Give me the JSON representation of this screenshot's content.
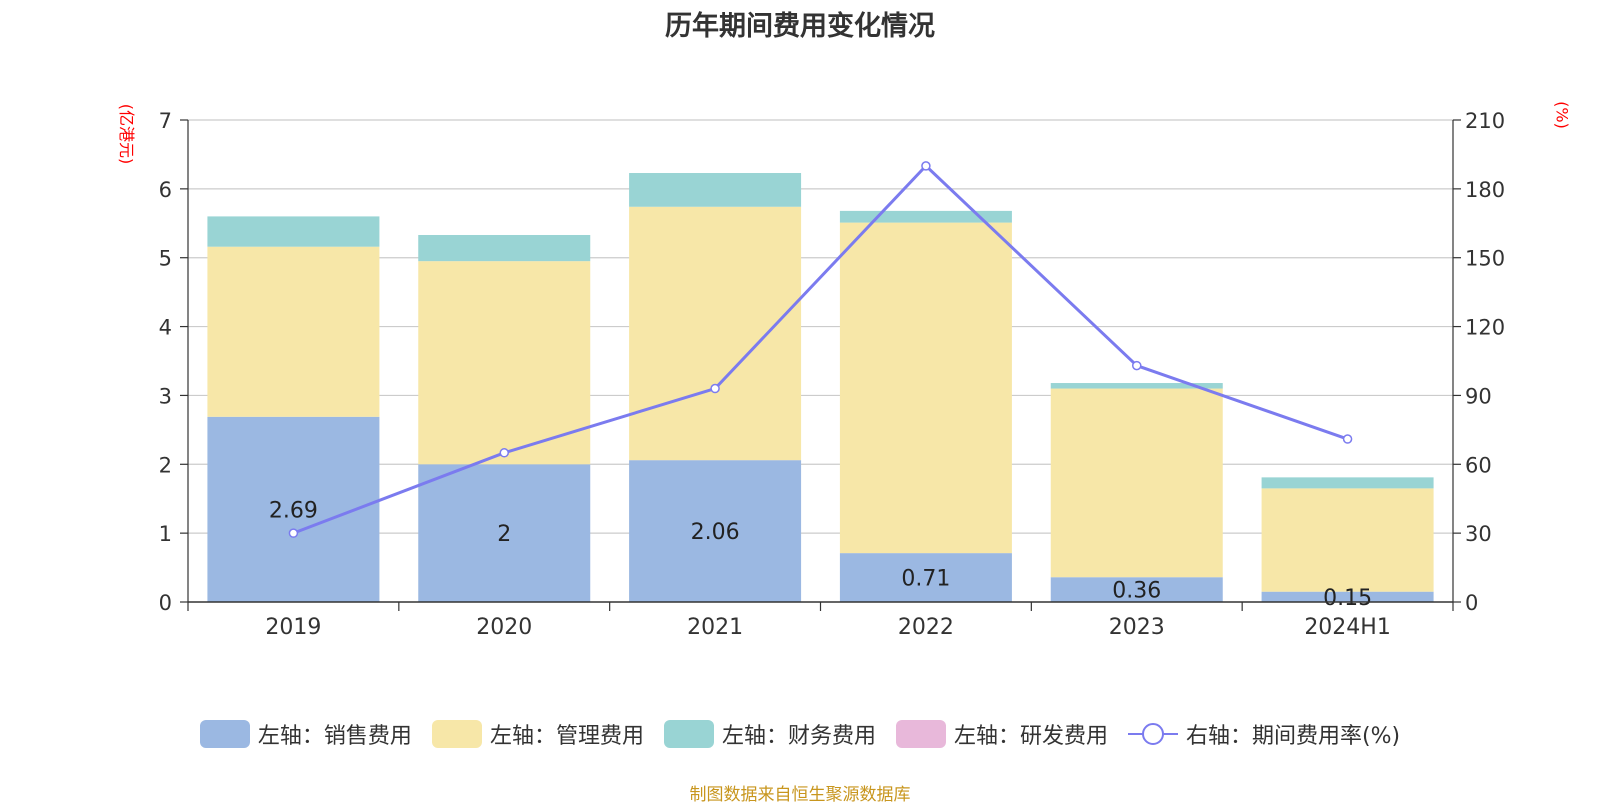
{
  "title": "历年期间费用变化情况",
  "unit_left": "(亿港元)",
  "unit_right": "(%)",
  "source": "制图数据来自恒生聚源数据库",
  "colors": {
    "sales": "#9bb8e2",
    "admin": "#f7e7a8",
    "finance": "#99d4d4",
    "rnd": "#e8b8da",
    "ratio": "#7b7bef"
  },
  "chart_data": {
    "type": "bar",
    "categories": [
      "2019",
      "2020",
      "2021",
      "2022",
      "2023",
      "2024H1"
    ],
    "ylim_left": [
      0,
      7
    ],
    "yticks_left": [
      "0",
      "1",
      "2",
      "3",
      "4",
      "5",
      "6",
      "7"
    ],
    "ylim_right": [
      0,
      210
    ],
    "yticks_right": [
      "0",
      "30",
      "60",
      "90",
      "120",
      "150",
      "180",
      "210"
    ],
    "grid": true,
    "legend_position": "bottom",
    "series": [
      {
        "name": "左轴：销售费用",
        "axis": "left",
        "stack": true,
        "values": [
          2.69,
          2,
          2.06,
          0.71,
          0.36,
          0.15
        ],
        "labels": [
          "2.69",
          "2",
          "2.06",
          "0.71",
          "0.36",
          "0.15"
        ]
      },
      {
        "name": "左轴：管理费用",
        "axis": "left",
        "stack": true,
        "values": [
          2.47,
          2.95,
          3.68,
          4.8,
          2.74,
          1.5
        ]
      },
      {
        "name": "左轴：财务费用",
        "axis": "left",
        "stack": true,
        "values": [
          0.44,
          0.38,
          0.49,
          0.17,
          0.08,
          0.16
        ]
      },
      {
        "name": "左轴：研发费用",
        "axis": "left",
        "stack": true,
        "values": [
          0,
          0,
          0,
          0,
          0,
          0
        ]
      },
      {
        "name": "右轴：期间费用率(%)",
        "axis": "right",
        "type": "line",
        "values": [
          30,
          65,
          93,
          190,
          103,
          71
        ]
      }
    ]
  }
}
